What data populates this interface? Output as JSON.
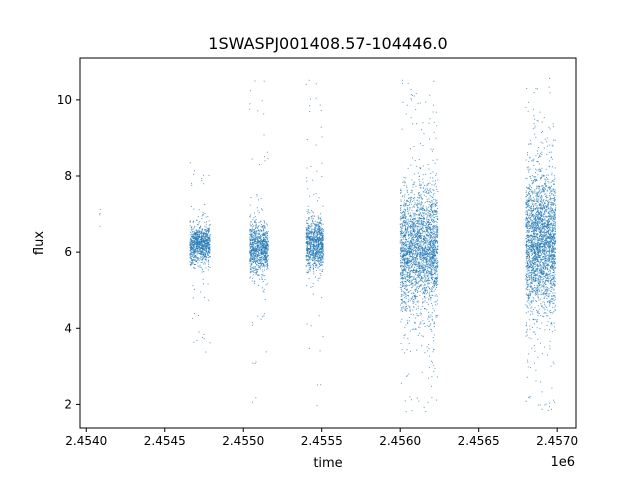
{
  "chart_data": {
    "type": "scatter",
    "title": "1SWASPJ001408.57-104446.0",
    "xlabel": "time",
    "ylabel": "flux",
    "x_offset_label": "1e6",
    "xlim": [
      2453960,
      2457120
    ],
    "ylim": [
      1.38,
      11.1
    ],
    "x_ticks": [
      2454000,
      2454500,
      2455000,
      2455500,
      2456000,
      2456500,
      2457000
    ],
    "x_tick_labels": [
      "2.4540",
      "2.4545",
      "2.4550",
      "2.4555",
      "2.4560",
      "2.4565",
      "2.4570"
    ],
    "y_ticks": [
      2,
      4,
      6,
      8,
      10
    ],
    "y_tick_labels": [
      "2",
      "4",
      "6",
      "8",
      "10"
    ],
    "grid": false,
    "marker_color": "#1f77b4",
    "observing_seasons": [
      {
        "x_start": 2454085,
        "x_end": 2454090,
        "center": 6.9,
        "spread": 0.25,
        "outlier_ymin": 6.6,
        "outlier_ymax": 7.3,
        "density": "very-low"
      },
      {
        "x_start": 2454660,
        "x_end": 2454790,
        "center": 6.2,
        "spread": 0.25,
        "outlier_ymin": 3.3,
        "outlier_ymax": 8.5,
        "density": "medium"
      },
      {
        "x_start": 2455040,
        "x_end": 2455160,
        "center": 6.1,
        "spread": 0.35,
        "outlier_ymin": 1.9,
        "outlier_ymax": 10.6,
        "density": "medium"
      },
      {
        "x_start": 2455400,
        "x_end": 2455510,
        "center": 6.2,
        "spread": 0.35,
        "outlier_ymin": 1.8,
        "outlier_ymax": 10.7,
        "density": "medium"
      },
      {
        "x_start": 2456000,
        "x_end": 2456240,
        "center": 6.1,
        "spread": 0.8,
        "outlier_ymin": 1.8,
        "outlier_ymax": 10.6,
        "density": "high"
      },
      {
        "x_start": 2456800,
        "x_end": 2456990,
        "center": 6.3,
        "spread": 0.9,
        "outlier_ymin": 1.8,
        "outlier_ymax": 10.6,
        "density": "high"
      }
    ]
  }
}
